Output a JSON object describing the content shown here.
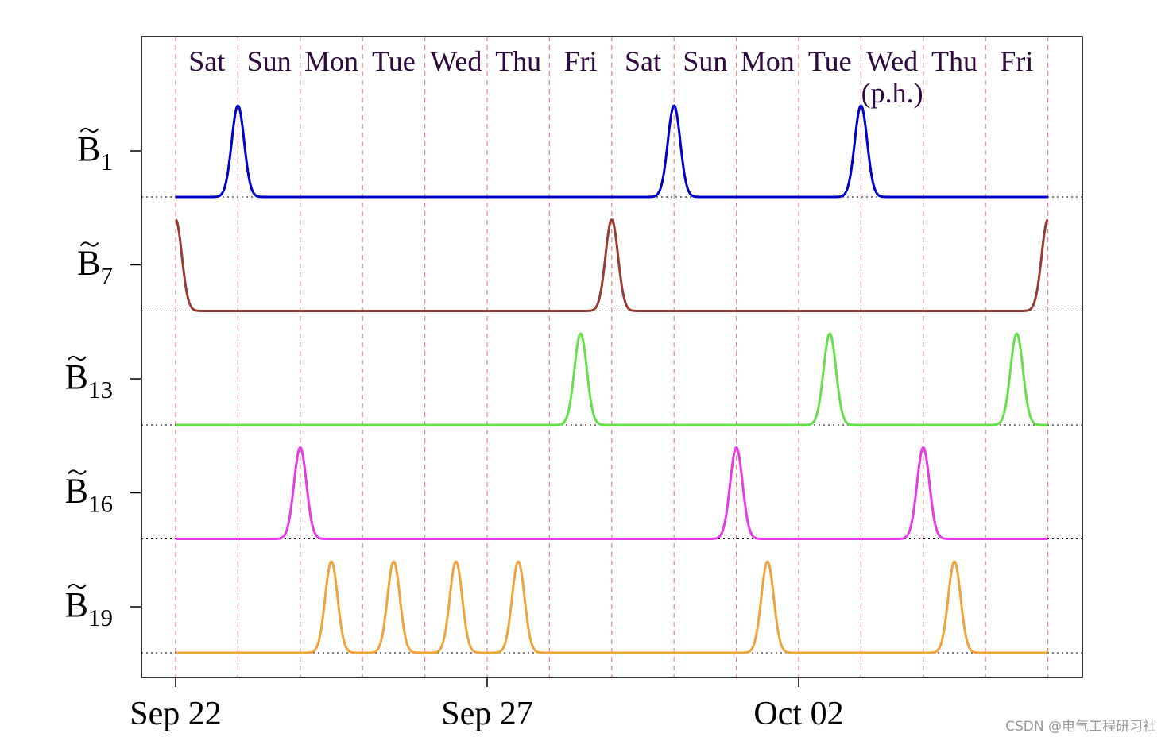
{
  "chart_data": {
    "type": "line",
    "x": {
      "start": "Sep 22",
      "end": "Oct 06",
      "days": [
        "Sat",
        "Sun",
        "Mon",
        "Tue",
        "Wed",
        "Thu",
        "Fri",
        "Sat",
        "Sun",
        "Mon",
        "Tue",
        "Wed",
        "Thu",
        "Fri"
      ],
      "ticks": [
        "Sep 22",
        "Sep 27",
        "Oct 02"
      ],
      "annotation": "(p.h.)"
    },
    "series": [
      {
        "name": "B̃1",
        "base": "B",
        "sub": "1",
        "color": "#0000cc",
        "peaks": [
          1.0,
          8.0,
          11.0
        ]
      },
      {
        "name": "B̃7",
        "base": "B",
        "sub": "7",
        "color": "#983c33",
        "peaks": [
          0.0,
          7.0,
          14.0
        ]
      },
      {
        "name": "B̃13",
        "base": "B",
        "sub": "13",
        "color": "#66e04a",
        "peaks": [
          6.5,
          10.5,
          13.5
        ]
      },
      {
        "name": "B̃16",
        "base": "B",
        "sub": "16",
        "color": "#e63be6",
        "peaks": [
          2.0,
          9.0,
          12.0
        ]
      },
      {
        "name": "B̃19",
        "base": "B",
        "sub": "19",
        "color": "#eea33c",
        "peaks": [
          2.5,
          3.5,
          4.5,
          5.5,
          9.5,
          12.5
        ]
      }
    ],
    "grid": "dashed red vertical lines at each day boundary",
    "legend": "none"
  },
  "footer": {
    "watermark": "CSDN @电气工程研习社"
  }
}
